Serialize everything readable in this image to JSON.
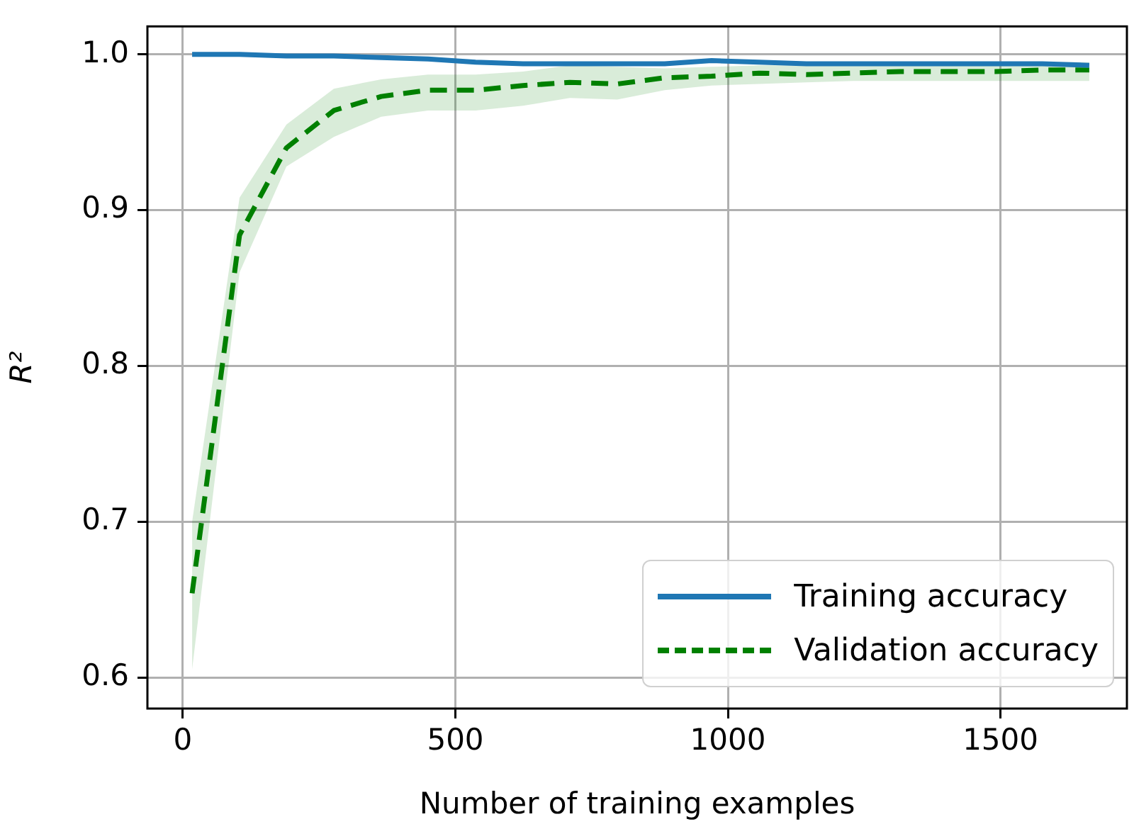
{
  "chart_data": {
    "type": "line",
    "xlabel": "Number of training examples",
    "ylabel": "R²",
    "x": [
      17,
      104,
      190,
      277,
      364,
      450,
      537,
      624,
      710,
      797,
      884,
      970,
      1057,
      1144,
      1230,
      1317,
      1404,
      1490,
      1577,
      1663
    ],
    "series": [
      {
        "name": "Training accuracy",
        "color": "#1f77b4",
        "line_style": "solid",
        "values": [
          1.0,
          1.0,
          0.999,
          0.999,
          0.998,
          0.997,
          0.995,
          0.994,
          0.994,
          0.994,
          0.994,
          0.996,
          0.995,
          0.994,
          0.994,
          0.994,
          0.994,
          0.994,
          0.994,
          0.993
        ]
      },
      {
        "name": "Validation accuracy",
        "color": "#008000",
        "line_style": "dashed",
        "values": [
          0.654,
          0.884,
          0.94,
          0.964,
          0.973,
          0.977,
          0.977,
          0.98,
          0.982,
          0.981,
          0.985,
          0.986,
          0.988,
          0.987,
          0.988,
          0.989,
          0.989,
          0.989,
          0.99,
          0.99
        ],
        "lower": [
          0.605,
          0.86,
          0.928,
          0.947,
          0.96,
          0.964,
          0.964,
          0.967,
          0.972,
          0.971,
          0.977,
          0.98,
          0.981,
          0.982,
          0.983,
          0.983,
          0.983,
          0.983,
          0.983,
          0.983
        ],
        "upper": [
          0.7,
          0.908,
          0.955,
          0.978,
          0.984,
          0.987,
          0.987,
          0.989,
          0.993,
          0.992,
          0.991,
          0.992,
          0.993,
          0.993,
          0.993,
          0.994,
          0.994,
          0.994,
          0.995,
          0.995
        ]
      }
    ],
    "xlim": [
      -65,
      1732
    ],
    "xticks": [
      0,
      500,
      1000,
      1500
    ],
    "ylim": [
      0.58,
      1.018
    ],
    "yticks": [
      0.6,
      0.7,
      0.8,
      0.9,
      {
        "value": 1.0,
        "label": "1.0"
      }
    ],
    "grid": true,
    "legend": "bottom right",
    "marker": "none"
  }
}
